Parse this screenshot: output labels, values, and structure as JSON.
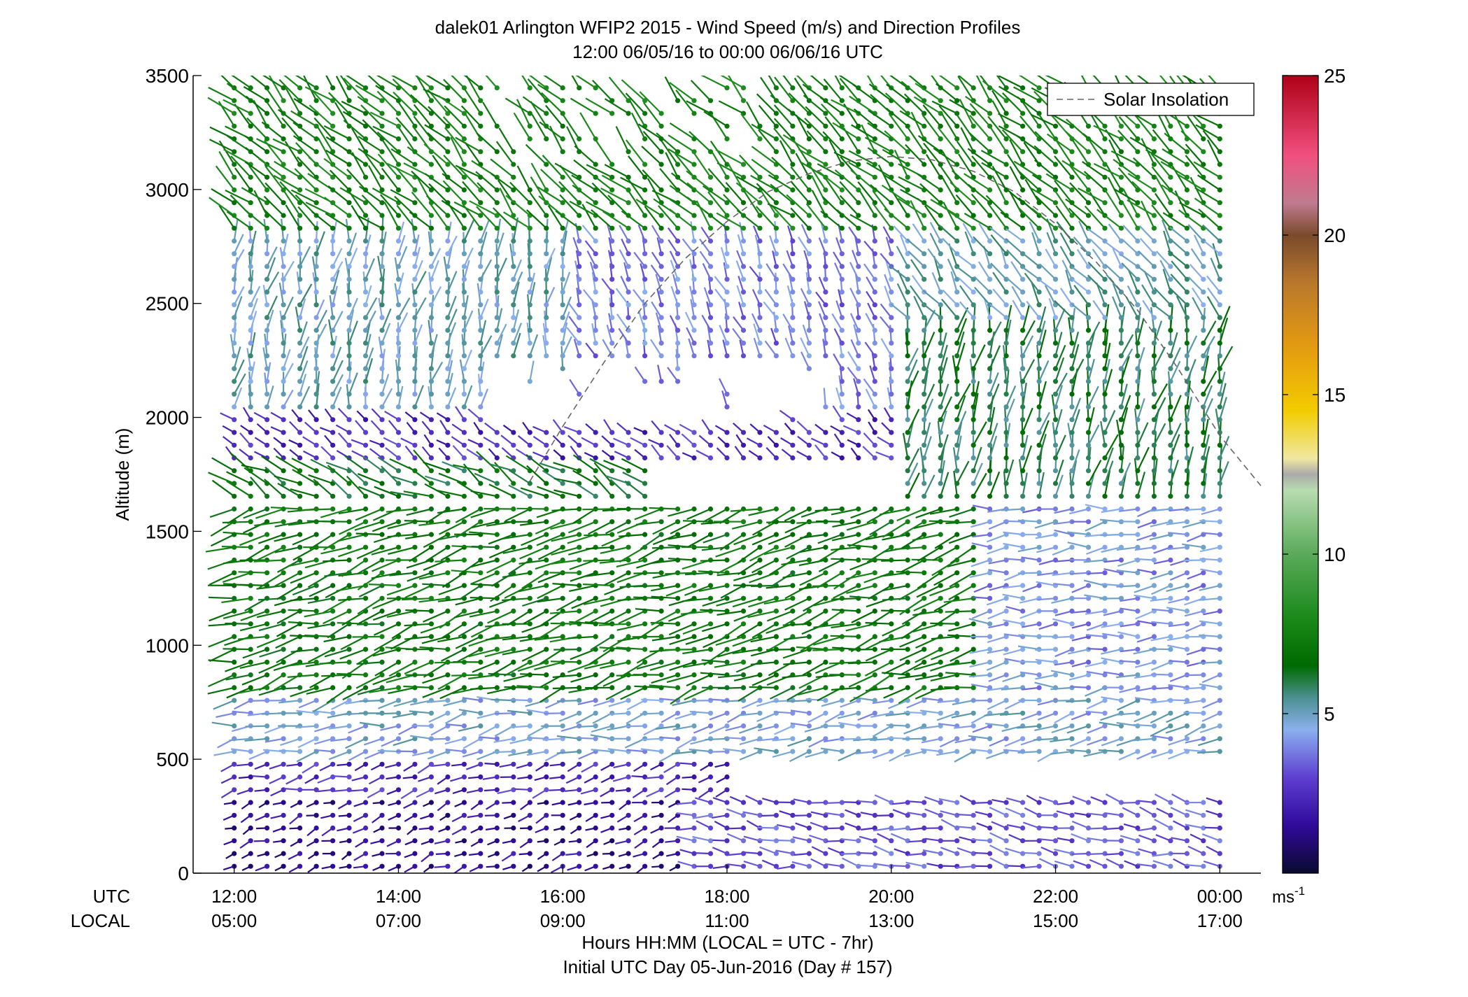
{
  "chart_data": {
    "type": "wind-barb-profile",
    "title": "dalek01 Arlington WFIP2 2015 - Wind Speed (m/s) and Direction Profiles",
    "subtitle": "12:00 06/05/16 to 00:00 06/06/16  UTC",
    "ylabel": "Altitude (m)",
    "xlabel": "Hours HH:MM  (LOCAL = UTC - 7hr)",
    "footer": "Initial UTC Day 05-Jun-2016 (Day # 157)",
    "utc_row_label": "UTC",
    "local_row_label": "LOCAL",
    "x_range_hours": [
      11.5,
      24.5
    ],
    "ylim": [
      0,
      3500
    ],
    "y_ticks": [
      "0",
      "500",
      "1000",
      "1500",
      "2000",
      "2500",
      "3000",
      "3500"
    ],
    "x_ticks": [
      {
        "utc": "12:00",
        "local": "05:00",
        "hour": 12
      },
      {
        "utc": "14:00",
        "local": "07:00",
        "hour": 14
      },
      {
        "utc": "16:00",
        "local": "09:00",
        "hour": 16
      },
      {
        "utc": "18:00",
        "local": "11:00",
        "hour": 18
      },
      {
        "utc": "20:00",
        "local": "13:00",
        "hour": 20
      },
      {
        "utc": "22:00",
        "local": "15:00",
        "hour": 22
      },
      {
        "utc": "00:00",
        "local": "17:00",
        "hour": 24
      }
    ],
    "legend": {
      "label": "Solar Insolation",
      "placement": "top-right",
      "style": "dashed"
    },
    "colorbar": {
      "ticks": [
        "5",
        "10",
        "15",
        "20",
        "25"
      ],
      "unit": "ms",
      "unit_exponent": "-1",
      "range": [
        0,
        25
      ],
      "colors": [
        {
          "v": 0,
          "c": "#0a0a30"
        },
        {
          "v": 1.5,
          "c": "#300a9a"
        },
        {
          "v": 3,
          "c": "#5e3fd0"
        },
        {
          "v": 4.5,
          "c": "#8ab0ee"
        },
        {
          "v": 5.5,
          "c": "#4a9090"
        },
        {
          "v": 6.5,
          "c": "#006a00"
        },
        {
          "v": 8,
          "c": "#1a8a1a"
        },
        {
          "v": 10,
          "c": "#5aaa5a"
        },
        {
          "v": 12,
          "c": "#b8dcb0"
        },
        {
          "v": 12.5,
          "c": "#aaaaaa"
        },
        {
          "v": 13,
          "c": "#f0e8a0"
        },
        {
          "v": 14.5,
          "c": "#f2cc00"
        },
        {
          "v": 16.5,
          "c": "#e49a10"
        },
        {
          "v": 18.5,
          "c": "#b8782c"
        },
        {
          "v": 20,
          "c": "#7a4a2c"
        },
        {
          "v": 21,
          "c": "#c07a90"
        },
        {
          "v": 22.5,
          "c": "#f0507e"
        },
        {
          "v": 25,
          "c": "#b00018"
        }
      ]
    },
    "solar_insolation_curve": {
      "hours": [
        15.6,
        16.0,
        16.5,
        17.0,
        17.5,
        18.0,
        18.5,
        19.0,
        19.5,
        20.0,
        20.5,
        21.0,
        21.5,
        22.0,
        22.5,
        23.0,
        23.5,
        24.0,
        24.5
      ],
      "altitude_m": [
        1720,
        1960,
        2240,
        2500,
        2700,
        2860,
        2990,
        3070,
        3125,
        3145,
        3130,
        3080,
        2990,
        2850,
        2680,
        2470,
        2210,
        1920,
        1700
      ]
    },
    "wind_regimes": [
      {
        "start_hour": 12.0,
        "end_hour": 17.5,
        "alt_min": 0,
        "alt_max": 350,
        "speed": 1.5,
        "dir_deg": 250
      },
      {
        "start_hour": 17.5,
        "end_hour": 24.0,
        "alt_min": 0,
        "alt_max": 350,
        "speed": 3.2,
        "dir_deg": 280
      },
      {
        "start_hour": 12.0,
        "end_hour": 18.0,
        "alt_min": 350,
        "alt_max": 500,
        "speed": 2.5,
        "dir_deg": 255
      },
      {
        "start_hour": 12.0,
        "end_hour": 24.0,
        "alt_min": 500,
        "alt_max": 800,
        "speed": 4.6,
        "dir_deg": 260
      },
      {
        "start_hour": 12.0,
        "end_hour": 21.0,
        "alt_min": 800,
        "alt_max": 1600,
        "speed": 7.0,
        "dir_deg": 255
      },
      {
        "start_hour": 21.0,
        "end_hour": 24.0,
        "alt_min": 800,
        "alt_max": 1600,
        "speed": 4.2,
        "dir_deg": 265
      },
      {
        "start_hour": 12.0,
        "end_hour": 17.0,
        "alt_min": 1600,
        "alt_max": 1800,
        "speed": 6.5,
        "dir_deg": 300
      },
      {
        "start_hour": 12.0,
        "end_hour": 20.0,
        "alt_min": 1800,
        "alt_max": 2000,
        "speed": 2.5,
        "dir_deg": 310
      },
      {
        "start_hour": 20.0,
        "end_hour": 24.0,
        "alt_min": 1600,
        "alt_max": 2400,
        "speed": 6.0,
        "dir_deg": 10
      },
      {
        "start_hour": 12.0,
        "end_hour": 16.0,
        "alt_min": 2000,
        "alt_max": 2800,
        "speed": 5.0,
        "dir_deg": 10
      },
      {
        "start_hour": 16.0,
        "end_hour": 20.0,
        "alt_min": 2000,
        "alt_max": 2800,
        "speed": 3.8,
        "dir_deg": 340
      },
      {
        "start_hour": 20.0,
        "end_hour": 24.0,
        "alt_min": 2400,
        "alt_max": 3000,
        "speed": 5.2,
        "dir_deg": 325
      },
      {
        "start_hour": 12.0,
        "end_hour": 24.0,
        "alt_min": 2800,
        "alt_max": 3500,
        "speed": 7.5,
        "dir_deg": 315
      }
    ]
  }
}
